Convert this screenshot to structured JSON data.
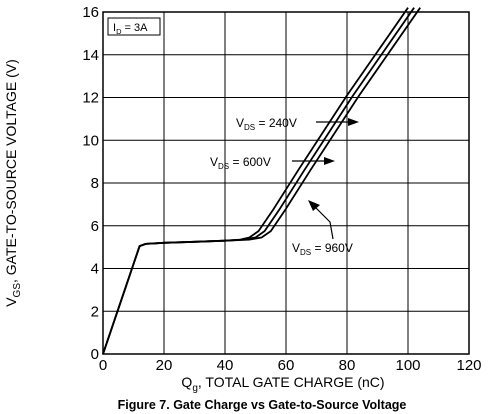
{
  "chart_data": {
    "type": "line",
    "title": "",
    "caption": "Figure 7. Gate Charge vs Gate-to-Source Voltage",
    "xlabel": {
      "prefix": "Q",
      "sub": "g",
      "rest": ", TOTAL GATE CHARGE (nC)"
    },
    "ylabel": {
      "prefix": "V",
      "sub": "GS",
      "rest": ", GATE-TO-SOURCE VOLTAGE (V)"
    },
    "xlim": [
      0,
      120
    ],
    "ylim": [
      0,
      16
    ],
    "xticks": [
      "0",
      "20",
      "40",
      "60",
      "80",
      "100",
      "120"
    ],
    "yticks": [
      "0",
      "2",
      "4",
      "6",
      "8",
      "10",
      "12",
      "14",
      "16"
    ],
    "grid": true,
    "condition": {
      "prefix": "I",
      "sub": "D",
      "rest": " = 3A"
    },
    "series": [
      {
        "name": {
          "prefix": "V",
          "sub": "DS",
          "rest": " = 240V"
        },
        "points": [
          [
            0,
            0
          ],
          [
            12,
            5.05
          ],
          [
            14,
            5.15
          ],
          [
            20,
            5.2
          ],
          [
            30,
            5.25
          ],
          [
            40,
            5.3
          ],
          [
            45,
            5.35
          ],
          [
            48,
            5.45
          ],
          [
            51,
            5.75
          ],
          [
            56,
            6.8
          ],
          [
            64,
            8.6
          ],
          [
            80,
            12.1
          ],
          [
            100,
            16.2
          ]
        ]
      },
      {
        "name": {
          "prefix": "V",
          "sub": "DS",
          "rest": " = 600V"
        },
        "points": [
          [
            0,
            0
          ],
          [
            12,
            5.05
          ],
          [
            14,
            5.15
          ],
          [
            20,
            5.2
          ],
          [
            30,
            5.25
          ],
          [
            40,
            5.3
          ],
          [
            46,
            5.35
          ],
          [
            50,
            5.45
          ],
          [
            53,
            5.75
          ],
          [
            58,
            6.8
          ],
          [
            66,
            8.6
          ],
          [
            82,
            12.1
          ],
          [
            102,
            16.2
          ]
        ]
      },
      {
        "name": {
          "prefix": "V",
          "sub": "DS",
          "rest": " = 960V"
        },
        "points": [
          [
            0,
            0
          ],
          [
            12,
            5.05
          ],
          [
            14,
            5.15
          ],
          [
            20,
            5.2
          ],
          [
            30,
            5.25
          ],
          [
            40,
            5.3
          ],
          [
            48,
            5.35
          ],
          [
            52,
            5.45
          ],
          [
            55,
            5.75
          ],
          [
            60,
            6.8
          ],
          [
            68,
            8.6
          ],
          [
            84,
            12.1
          ],
          [
            104,
            16.2
          ]
        ]
      }
    ]
  }
}
